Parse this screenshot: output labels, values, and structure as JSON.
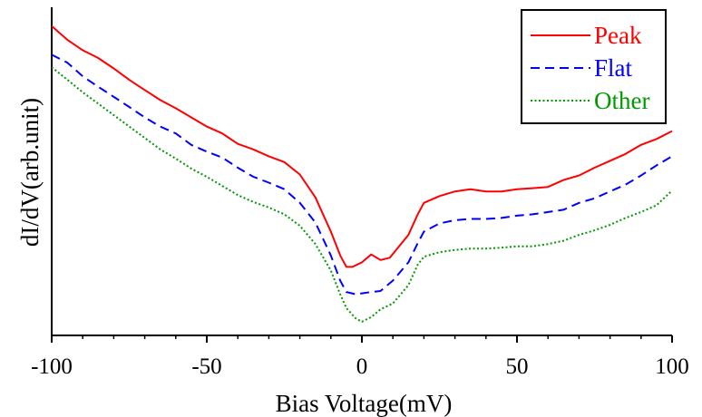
{
  "chart_data": {
    "type": "line",
    "xlabel": "Bias Voltage(mV)",
    "ylabel": "dI/dV(arb.unit)",
    "xlim": [
      -100,
      100
    ],
    "ylim": [
      0,
      1
    ],
    "x_ticks": [
      -100,
      -50,
      0,
      50,
      100
    ],
    "x_tick_labels": [
      "-100",
      "-50",
      "0",
      "50",
      "100"
    ],
    "y_tick_labels_shown": false,
    "grid": false,
    "legend_position": "top-right",
    "series": [
      {
        "name": "Peak",
        "color": "#ff0000",
        "style": "solid",
        "points": [
          [
            -100,
            0.948
          ],
          [
            -95,
            0.906
          ],
          [
            -90,
            0.874
          ],
          [
            -85,
            0.85
          ],
          [
            -80,
            0.818
          ],
          [
            -75,
            0.783
          ],
          [
            -70,
            0.752
          ],
          [
            -65,
            0.721
          ],
          [
            -60,
            0.696
          ],
          [
            -55,
            0.668
          ],
          [
            -50,
            0.64
          ],
          [
            -45,
            0.619
          ],
          [
            -40,
            0.587
          ],
          [
            -35,
            0.57
          ],
          [
            -30,
            0.549
          ],
          [
            -25,
            0.531
          ],
          [
            -20,
            0.493
          ],
          [
            -15,
            0.423
          ],
          [
            -10,
            0.318
          ],
          [
            -7,
            0.245
          ],
          [
            -5,
            0.21
          ],
          [
            -3,
            0.21
          ],
          [
            0,
            0.224
          ],
          [
            3,
            0.248
          ],
          [
            6,
            0.231
          ],
          [
            9,
            0.238
          ],
          [
            12,
            0.273
          ],
          [
            15,
            0.308
          ],
          [
            18,
            0.371
          ],
          [
            20,
            0.406
          ],
          [
            25,
            0.427
          ],
          [
            30,
            0.441
          ],
          [
            35,
            0.448
          ],
          [
            40,
            0.441
          ],
          [
            45,
            0.441
          ],
          [
            50,
            0.448
          ],
          [
            55,
            0.451
          ],
          [
            60,
            0.455
          ],
          [
            65,
            0.476
          ],
          [
            70,
            0.49
          ],
          [
            75,
            0.514
          ],
          [
            80,
            0.535
          ],
          [
            85,
            0.556
          ],
          [
            90,
            0.584
          ],
          [
            95,
            0.602
          ],
          [
            100,
            0.626
          ]
        ]
      },
      {
        "name": "Flat",
        "color": "#0000ff",
        "style": "dashed",
        "points": [
          [
            -100,
            0.86
          ],
          [
            -95,
            0.836
          ],
          [
            -90,
            0.794
          ],
          [
            -85,
            0.762
          ],
          [
            -80,
            0.731
          ],
          [
            -75,
            0.7
          ],
          [
            -70,
            0.668
          ],
          [
            -65,
            0.64
          ],
          [
            -60,
            0.619
          ],
          [
            -55,
            0.584
          ],
          [
            -50,
            0.563
          ],
          [
            -45,
            0.545
          ],
          [
            -40,
            0.514
          ],
          [
            -35,
            0.486
          ],
          [
            -30,
            0.468
          ],
          [
            -25,
            0.448
          ],
          [
            -20,
            0.406
          ],
          [
            -15,
            0.346
          ],
          [
            -10,
            0.245
          ],
          [
            -7,
            0.168
          ],
          [
            -5,
            0.133
          ],
          [
            -2,
            0.126
          ],
          [
            0,
            0.129
          ],
          [
            3,
            0.133
          ],
          [
            6,
            0.136
          ],
          [
            10,
            0.168
          ],
          [
            15,
            0.224
          ],
          [
            18,
            0.283
          ],
          [
            20,
            0.318
          ],
          [
            25,
            0.343
          ],
          [
            30,
            0.353
          ],
          [
            35,
            0.357
          ],
          [
            40,
            0.357
          ],
          [
            45,
            0.36
          ],
          [
            50,
            0.367
          ],
          [
            55,
            0.371
          ],
          [
            60,
            0.378
          ],
          [
            65,
            0.385
          ],
          [
            70,
            0.406
          ],
          [
            75,
            0.42
          ],
          [
            80,
            0.441
          ],
          [
            85,
            0.462
          ],
          [
            90,
            0.49
          ],
          [
            95,
            0.521
          ],
          [
            100,
            0.549
          ]
        ]
      },
      {
        "name": "Other",
        "color": "#009900",
        "style": "dotted",
        "points": [
          [
            -100,
            0.822
          ],
          [
            -95,
            0.784
          ],
          [
            -90,
            0.745
          ],
          [
            -85,
            0.71
          ],
          [
            -80,
            0.675
          ],
          [
            -75,
            0.64
          ],
          [
            -70,
            0.605
          ],
          [
            -65,
            0.57
          ],
          [
            -60,
            0.542
          ],
          [
            -55,
            0.511
          ],
          [
            -50,
            0.486
          ],
          [
            -45,
            0.458
          ],
          [
            -40,
            0.43
          ],
          [
            -35,
            0.409
          ],
          [
            -30,
            0.392
          ],
          [
            -25,
            0.371
          ],
          [
            -20,
            0.336
          ],
          [
            -15,
            0.28
          ],
          [
            -10,
            0.199
          ],
          [
            -7,
            0.126
          ],
          [
            -5,
            0.084
          ],
          [
            -2,
            0.052
          ],
          [
            0,
            0.042
          ],
          [
            3,
            0.056
          ],
          [
            6,
            0.08
          ],
          [
            10,
            0.098
          ],
          [
            15,
            0.154
          ],
          [
            18,
            0.217
          ],
          [
            20,
            0.241
          ],
          [
            25,
            0.255
          ],
          [
            30,
            0.262
          ],
          [
            35,
            0.266
          ],
          [
            40,
            0.266
          ],
          [
            45,
            0.269
          ],
          [
            50,
            0.273
          ],
          [
            55,
            0.273
          ],
          [
            60,
            0.28
          ],
          [
            65,
            0.29
          ],
          [
            70,
            0.308
          ],
          [
            75,
            0.322
          ],
          [
            80,
            0.339
          ],
          [
            85,
            0.36
          ],
          [
            90,
            0.378
          ],
          [
            95,
            0.399
          ],
          [
            100,
            0.444
          ]
        ]
      }
    ]
  }
}
